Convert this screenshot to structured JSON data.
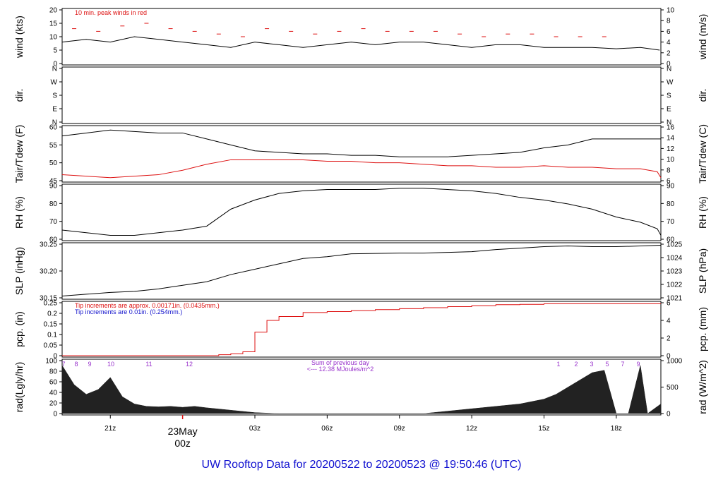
{
  "title": "UW Rooftop Data for 20200522  to  20200523 @ 19:50:46  (UTC)",
  "date_marker": {
    "line1": "23May",
    "line2": "00z",
    "color": "#dd1111"
  },
  "x_ticks": [
    "21z",
    "03z",
    "06z",
    "09z",
    "12z",
    "15z",
    "18z"
  ],
  "colors": {
    "line": "#000000",
    "red": "#dd1111",
    "blue": "#1111cc",
    "purple": "#9933cc",
    "fill": "#222222"
  },
  "panels": [
    {
      "id": "wind",
      "left_label": "wind (kts)",
      "right_label": "wind (m/s)",
      "left_ticks": [
        "0",
        "5",
        "10",
        "15",
        "20"
      ],
      "right_ticks": [
        "0",
        "2",
        "4",
        "6",
        "8",
        "10"
      ],
      "annotations": [
        {
          "text": "10 min. peak winds in red",
          "color": "#dd1111"
        }
      ]
    },
    {
      "id": "dir",
      "left_label": "dir.",
      "right_label": "dir.",
      "left_ticks": [
        "N",
        "E",
        "S",
        "W",
        "N"
      ],
      "right_ticks": [
        "N",
        "E",
        "S",
        "W",
        "N"
      ],
      "annotations": []
    },
    {
      "id": "temp",
      "left_label": "Tair/Tdew (F)",
      "right_label": "Tair/Tdew (C)",
      "left_ticks": [
        "45",
        "50",
        "55",
        "60"
      ],
      "right_ticks": [
        "6",
        "8",
        "10",
        "12",
        "14",
        "16"
      ],
      "annotations": []
    },
    {
      "id": "rh",
      "left_label": "RH (%)",
      "right_label": "RH (%)",
      "left_ticks": [
        "60",
        "70",
        "80",
        "90"
      ],
      "right_ticks": [
        "60",
        "70",
        "80",
        "90"
      ],
      "annotations": []
    },
    {
      "id": "slp",
      "left_label": "SLP (inHg)",
      "right_label": "SLP (hPa)",
      "left_ticks": [
        "30.15",
        "30.20",
        "30.25"
      ],
      "right_ticks": [
        "1021",
        "1022",
        "1023",
        "1024",
        "1025"
      ],
      "annotations": []
    },
    {
      "id": "pcp",
      "left_label": "pcp. (in)",
      "right_label": "pcp. (mm)",
      "left_ticks": [
        "0",
        "0.05",
        "0.1",
        "0.15",
        "0.2",
        "0.25"
      ],
      "right_ticks": [
        "0",
        "2",
        "4",
        "6"
      ],
      "annotations": [
        {
          "text": "Tip increments are approx. 0.00171in. (0.0435mm.)",
          "color": "#dd1111"
        },
        {
          "text": "Tip increments are 0.01in. (0.254mm.)",
          "color": "#1111cc"
        }
      ]
    },
    {
      "id": "rad",
      "left_label": "rad(Lgly/hr)",
      "right_label": "rad (W/m^2)",
      "left_ticks": [
        "0",
        "20",
        "40",
        "60",
        "80",
        "100"
      ],
      "right_ticks": [
        "0",
        "500",
        "1000"
      ],
      "annotations": [
        {
          "text": "Sum of previous day",
          "color": "#9933cc"
        },
        {
          "text": "<--- 12.38 MJoules/m^2",
          "color": "#9933cc"
        }
      ]
    }
  ],
  "hour_marks": [
    "7",
    "8",
    "9",
    "10",
    "11",
    "12",
    "1",
    "2",
    "3",
    "5",
    "7",
    "9"
  ],
  "chart_data": {
    "type": "line",
    "x_unit": "hours UTC from 2020-05-22 19:00",
    "x_range": [
      0,
      24.85
    ],
    "x_tick_hours": [
      2,
      8,
      11,
      14,
      17,
      20,
      23
    ],
    "series": [
      {
        "name": "wind",
        "ylim": [
          0,
          20
        ],
        "color": "#000000",
        "x": [
          0,
          1,
          2,
          3,
          4,
          5,
          6,
          7,
          8,
          9,
          10,
          11,
          12,
          13,
          14,
          15,
          16,
          17,
          18,
          19,
          20,
          21,
          22,
          23,
          24,
          24.8
        ],
        "values": [
          8,
          9,
          8,
          10,
          9,
          8,
          7,
          6,
          8,
          7,
          6,
          7,
          8,
          7,
          8,
          8,
          7,
          6,
          7,
          7,
          6,
          6,
          6,
          5.5,
          6,
          5
        ]
      },
      {
        "name": "wind peak",
        "ylim": [
          0,
          20
        ],
        "color": "#dd1111",
        "x": [
          0.5,
          1.5,
          2.5,
          3.5,
          4.5,
          5.5,
          6.5,
          7.5,
          8.5,
          9.5,
          10.5,
          11.5,
          12.5,
          13.5,
          14.5,
          15.5,
          16.5,
          17.5,
          18.5,
          19.5,
          20.5,
          21.5,
          22.5
        ],
        "values": [
          13,
          12,
          14,
          15,
          13,
          12,
          11,
          10,
          13,
          12,
          11,
          12,
          13,
          12,
          12,
          12,
          11,
          10,
          11,
          11,
          10,
          10,
          10
        ]
      },
      {
        "name": "Tair",
        "ylim": [
          42,
          60
        ],
        "color": "#000000",
        "x": [
          0,
          1,
          2,
          3,
          4,
          5,
          6,
          7,
          8,
          9,
          10,
          11,
          12,
          13,
          14,
          15,
          16,
          17,
          18,
          19,
          20,
          21,
          22,
          23,
          24,
          24.7,
          24.85
        ],
        "values": [
          57,
          58,
          59,
          58.5,
          58,
          58,
          56,
          54,
          52,
          51.5,
          51,
          51,
          50.5,
          50.5,
          50,
          50,
          50,
          50.5,
          51,
          51.5,
          53,
          54,
          56,
          56,
          56,
          56,
          56
        ]
      },
      {
        "name": "Tdew",
        "ylim": [
          42,
          60
        ],
        "color": "#dd1111",
        "x": [
          0,
          1,
          2,
          3,
          4,
          5,
          6,
          7,
          8,
          9,
          10,
          11,
          12,
          13,
          14,
          15,
          16,
          17,
          18,
          19,
          20,
          21,
          22,
          23,
          24,
          24.7,
          24.85
        ],
        "values": [
          44,
          43.5,
          43,
          43.5,
          44,
          45.5,
          47.5,
          49,
          49,
          49,
          49,
          48.5,
          48.5,
          48,
          48,
          47.5,
          47,
          47,
          46.5,
          46.5,
          47,
          46.5,
          46.5,
          46,
          46,
          45,
          43
        ]
      },
      {
        "name": "RH",
        "ylim": [
          55,
          96
        ],
        "color": "#000000",
        "x": [
          0,
          1,
          2,
          3,
          4,
          5,
          6,
          7,
          8,
          9,
          10,
          11,
          12,
          13,
          14,
          15,
          16,
          17,
          18,
          19,
          20,
          21,
          22,
          23,
          24,
          24.7,
          24.85
        ],
        "values": [
          62,
          60,
          58,
          58,
          60,
          62,
          65,
          78,
          85,
          90,
          92,
          93,
          93,
          93,
          94,
          94,
          93,
          92,
          90,
          87,
          85,
          82,
          78,
          72,
          68,
          63,
          58
        ]
      },
      {
        "name": "SLP",
        "ylim": [
          30.125,
          30.275
        ],
        "color": "#000000",
        "x": [
          0,
          1,
          2,
          3,
          4,
          5,
          6,
          7,
          8,
          9,
          10,
          11,
          12,
          13,
          14,
          15,
          16,
          17,
          18,
          19,
          20,
          21,
          22,
          23,
          24,
          24.85
        ],
        "values": [
          30.13,
          30.135,
          30.14,
          30.143,
          30.15,
          30.16,
          30.17,
          30.19,
          30.205,
          30.22,
          30.235,
          30.24,
          30.248,
          30.249,
          30.25,
          30.25,
          30.252,
          30.254,
          30.26,
          30.264,
          30.268,
          30.27,
          30.268,
          30.268,
          30.27,
          30.272
        ]
      },
      {
        "name": "pcp",
        "ylim": [
          0,
          0.27
        ],
        "color": "#dd1111",
        "x": [
          0,
          3,
          5,
          6,
          6.5,
          7,
          7.5,
          8,
          8.5,
          9,
          10,
          11,
          12,
          13,
          14,
          15,
          16,
          17,
          18,
          19,
          20,
          21,
          22,
          23,
          24,
          24.85
        ],
        "values": [
          0,
          0,
          0,
          0,
          0.005,
          0.01,
          0.02,
          0.12,
          0.18,
          0.2,
          0.22,
          0.225,
          0.23,
          0.235,
          0.24,
          0.245,
          0.25,
          0.255,
          0.26,
          0.262,
          0.265,
          0.265,
          0.265,
          0.265,
          0.265,
          0.265
        ]
      },
      {
        "name": "rad",
        "ylim": [
          0,
          110
        ],
        "color": "#222222",
        "x": [
          0,
          0.5,
          1,
          1.5,
          2,
          2.5,
          3,
          3.5,
          4,
          4.5,
          5,
          5.5,
          6,
          7,
          8,
          9,
          10,
          11,
          12,
          13,
          14,
          15,
          16,
          17,
          18,
          19,
          20,
          20.5,
          21,
          21.5,
          22,
          22.5,
          23,
          23.5,
          24,
          24.3,
          24.85
        ],
        "values": [
          100,
          60,
          40,
          50,
          75,
          35,
          20,
          15,
          14,
          15,
          13,
          15,
          12,
          7,
          2,
          0,
          0,
          0,
          0,
          0,
          0,
          0,
          5,
          10,
          15,
          20,
          30,
          40,
          55,
          70,
          85,
          90,
          0,
          0,
          100,
          0,
          20
        ]
      }
    ]
  }
}
